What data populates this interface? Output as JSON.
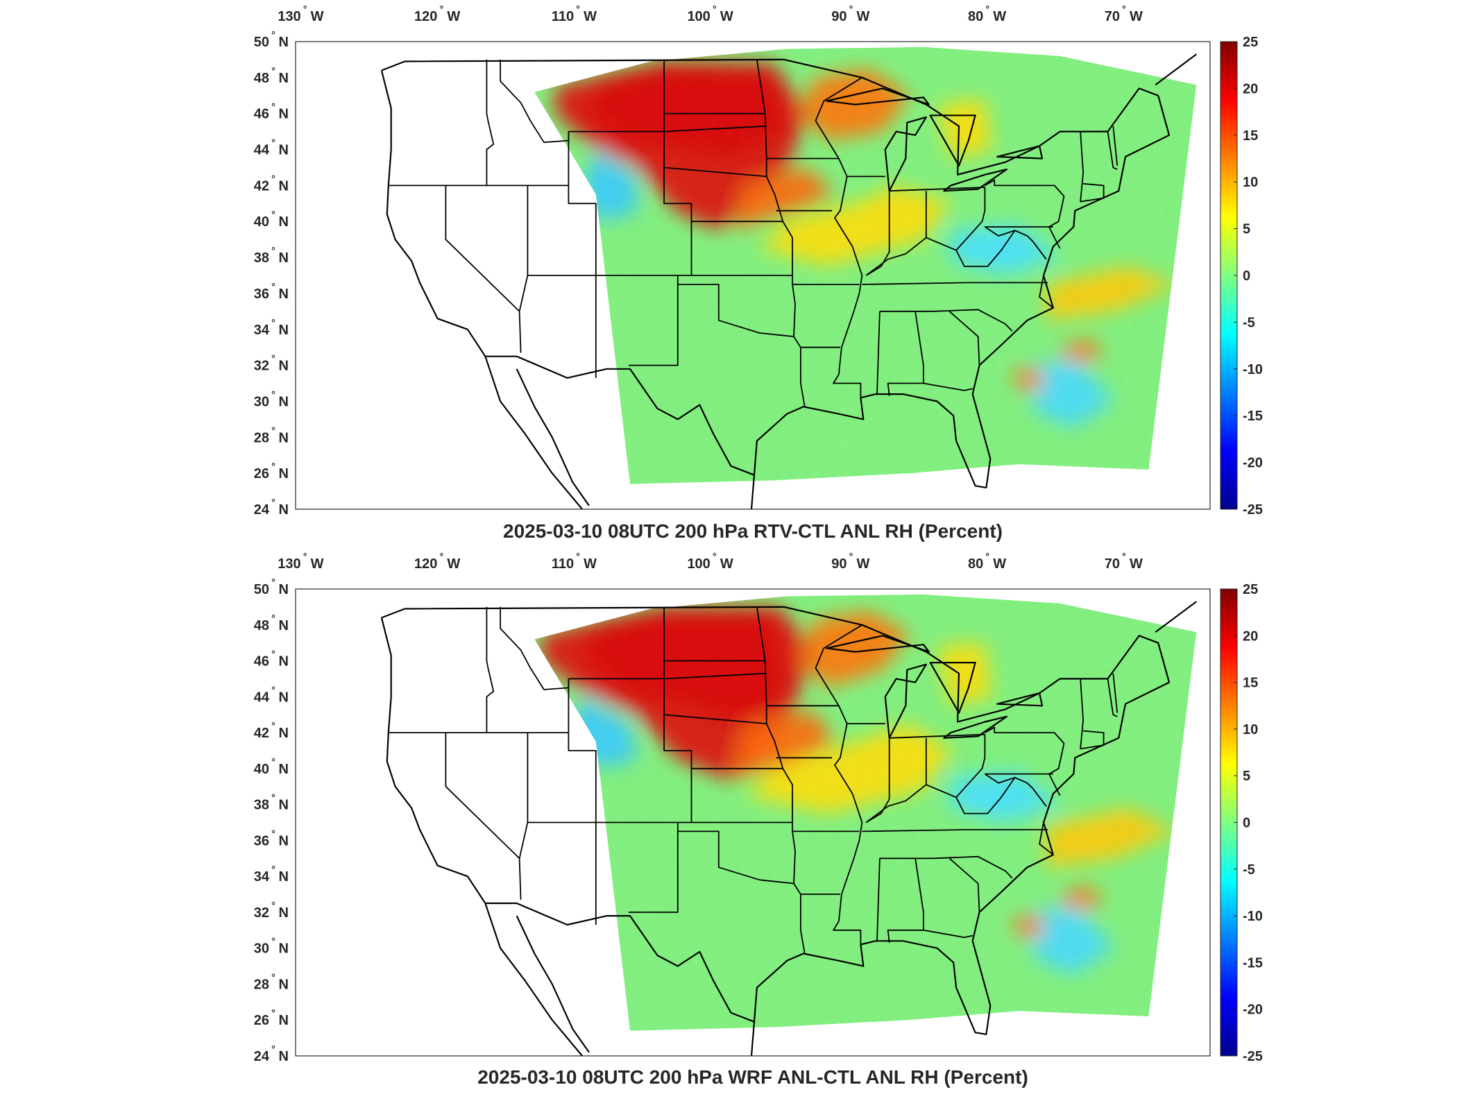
{
  "panels": [
    {
      "title": "2025-03-10 08UTC 200 hPa RTV-CTL ANL RH (Percent)",
      "lon_ticks": [
        "130",
        "120",
        "110",
        "100",
        "90",
        "80",
        "70"
      ],
      "lat_ticks": [
        "50",
        "48",
        "46",
        "44",
        "42",
        "40",
        "38",
        "36",
        "34",
        "32",
        "30",
        "28",
        "26",
        "24"
      ],
      "west_label": "W",
      "north_label": "N",
      "degree_symbol": "°",
      "colorbar_ticks": [
        "25",
        "20",
        "15",
        "10",
        "5",
        "0",
        "-5",
        "-10",
        "-15",
        "-20",
        "-25"
      ]
    },
    {
      "title": "2025-03-10 08UTC 200 hPa WRF ANL-CTL ANL RH (Percent)",
      "lon_ticks": [
        "130",
        "120",
        "110",
        "100",
        "90",
        "80",
        "70"
      ],
      "lat_ticks": [
        "50",
        "48",
        "46",
        "44",
        "42",
        "40",
        "38",
        "36",
        "34",
        "32",
        "30",
        "28",
        "26",
        "24"
      ],
      "west_label": "W",
      "north_label": "N",
      "degree_symbol": "°",
      "colorbar_ticks": [
        "25",
        "20",
        "15",
        "10",
        "5",
        "0",
        "-5",
        "-10",
        "-15",
        "-20",
        "-25"
      ]
    }
  ],
  "colormap": [
    "#00008f",
    "#0000ff",
    "#0080ff",
    "#00ffff",
    "#80ff80",
    "#ffff00",
    "#ff8000",
    "#ff0000",
    "#800000"
  ],
  "colorbar_range": [
    -25,
    25
  ],
  "longitude_range": [
    -131,
    -64
  ],
  "latitude_range": [
    24,
    50
  ]
}
